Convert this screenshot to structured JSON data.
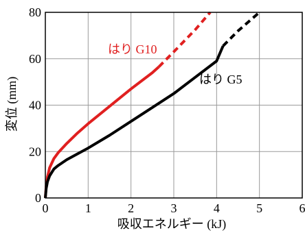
{
  "chart_data": {
    "type": "line",
    "title": "",
    "xlabel": "吸収エネルギー (kJ)",
    "ylabel": "変位 (mm)",
    "xlim": [
      0,
      6
    ],
    "ylim": [
      0,
      80
    ],
    "x_ticks": [
      0,
      1,
      2,
      3,
      4,
      5,
      6
    ],
    "y_ticks": [
      0,
      20,
      40,
      60,
      80
    ],
    "grid": true,
    "legend": "none (series labeled directly on plot)",
    "series": [
      {
        "name": "はり G10",
        "color": "#e02020",
        "solid": {
          "x": [
            0,
            0.02,
            0.05,
            0.1,
            0.2,
            0.3,
            0.5,
            0.75,
            1.0,
            1.5,
            2.0,
            2.5,
            2.65
          ],
          "y": [
            0,
            5,
            9,
            13,
            17,
            19.5,
            23.5,
            28,
            32,
            39.5,
            47,
            54,
            56.5
          ]
        },
        "dashed": {
          "x": [
            2.65,
            3.0,
            3.5,
            3.85
          ],
          "y": [
            56.5,
            63,
            72.5,
            80
          ]
        }
      },
      {
        "name": "はり G5",
        "color": "#000000",
        "solid": {
          "x": [
            0,
            0.02,
            0.05,
            0.1,
            0.2,
            0.3,
            0.5,
            0.75,
            1.0,
            1.5,
            2.0,
            2.5,
            3.0,
            3.5,
            4.0,
            4.15
          ],
          "y": [
            0,
            4,
            7,
            9.5,
            12.5,
            14,
            16.5,
            19,
            21.5,
            27,
            33,
            39,
            45,
            52,
            59,
            65.5
          ]
        },
        "dashed": {
          "x": [
            4.15,
            4.5,
            5.0
          ],
          "y": [
            65.5,
            72,
            80
          ]
        }
      }
    ]
  }
}
